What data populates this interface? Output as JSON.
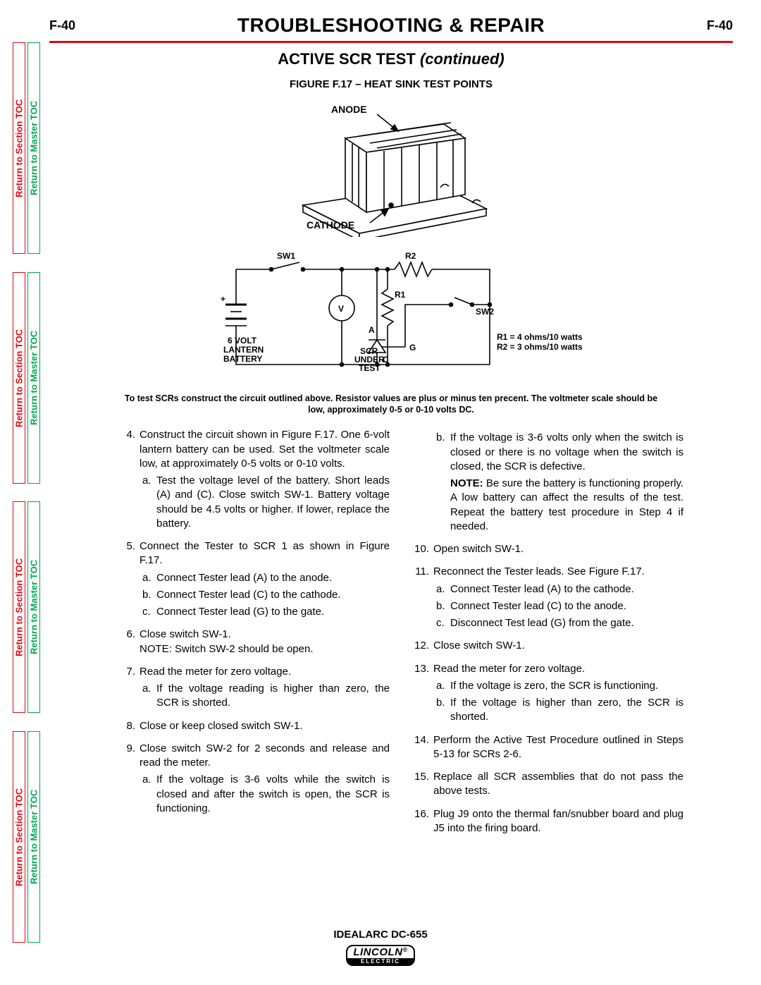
{
  "page_number": "F-40",
  "main_title": "TROUBLESHOOTING & REPAIR",
  "subtitle_main": "ACTIVE SCR TEST ",
  "subtitle_cont": "(continued)",
  "figure_title": "FIGURE F.17 – HEAT SINK TEST POINTS",
  "side_tabs": {
    "section": "Return to Section TOC",
    "master": "Return to Master TOC"
  },
  "heatsink_diagram": {
    "anode_label": "ANODE",
    "cathode_label": "CATHODE",
    "stroke": "#000000",
    "fill": "#ffffff"
  },
  "circuit_diagram": {
    "labels": {
      "sw1": "SW1",
      "sw2": "SW2",
      "r1": "R1",
      "r2": "R2",
      "v": "V",
      "a": "A",
      "g": "G",
      "c": "C",
      "plus": "+",
      "battery": "6 VOLT\nLANTERN\nBATTERY",
      "scr": "SCR\nUNDER\nTEST",
      "r_spec1": "R1 = 4 ohms/10 watts",
      "r_spec2": "R2 = 3 ohms/10 watts"
    },
    "stroke": "#000000"
  },
  "caption_note": "To test SCRs construct the circuit outlined above.  Resistor values are plus or minus ten precent.  The voltmeter scale should be low, approximately 0-5 or 0-10 volts DC.",
  "left_steps": [
    {
      "n": "4.",
      "body": "Construct the circuit shown in Figure F.17. One 6-volt lantern battery can be used.  Set the voltmeter scale low, at approximately 0-5 volts or 0-10 volts.",
      "subs": [
        {
          "l": "a.",
          "b": "Test the voltage level of the battery. Short leads (A) and (C).  Close switch SW-1.  Battery voltage should be 4.5 volts or higher.  If lower, replace the battery."
        }
      ]
    },
    {
      "n": "5.",
      "body": "Connect the Tester to SCR 1 as shown in Figure F.17.",
      "subs": [
        {
          "l": "a.",
          "b": "Connect Tester lead (A) to the anode."
        },
        {
          "l": "b.",
          "b": "Connect Tester lead (C) to the cathode."
        },
        {
          "l": "c.",
          "b": "Connect Tester lead (G) to the gate."
        }
      ]
    },
    {
      "n": "6.",
      "body": "Close switch SW-1.\nNOTE: Switch SW-2 should be open.",
      "subs": []
    },
    {
      "n": "7.",
      "body": "Read the meter for zero voltage.",
      "subs": [
        {
          "l": "a.",
          "b": "If the voltage reading is higher than zero, the SCR is shorted."
        }
      ]
    },
    {
      "n": "8.",
      "body": "Close or keep closed switch SW-1.",
      "subs": []
    },
    {
      "n": "9.",
      "body": "Close switch SW-2 for 2 seconds and release and read the meter.",
      "subs": [
        {
          "l": "a.",
          "b": "If the voltage is 3-6 volts while the switch is closed and after the switch is open, the SCR is functioning."
        }
      ]
    }
  ],
  "right_lead_subs": [
    {
      "l": "b.",
      "b": "If the voltage is 3-6 volts only when the switch is closed or there is no voltage when the switch is closed, the SCR is defective."
    }
  ],
  "right_note": "Be sure the battery is functioning properly.  A low battery can affect the results of the test.  Repeat the battery test procedure in Step 4 if needed.",
  "right_steps": [
    {
      "n": "10.",
      "body": "Open switch SW-1.",
      "subs": []
    },
    {
      "n": "11.",
      "body": "Reconnect the Tester leads.  See Figure F.17.",
      "subs": [
        {
          "l": "a.",
          "b": "Connect Tester lead (A) to the cathode."
        },
        {
          "l": "b.",
          "b": "Connect Tester lead (C) to the anode."
        },
        {
          "l": "c.",
          "b": "Disconnect Test lead (G) from the gate."
        }
      ]
    },
    {
      "n": "12.",
      "body": "Close switch SW-1.",
      "subs": []
    },
    {
      "n": "13.",
      "body": "Read the meter for zero voltage.",
      "subs": [
        {
          "l": "a.",
          "b": "If the voltage is zero, the SCR is functioning."
        },
        {
          "l": "b.",
          "b": "If the voltage is higher than zero, the SCR is shorted."
        }
      ]
    },
    {
      "n": "14.",
      "body": "Perform the Active Test Procedure outlined in Steps 5-13 for SCRs 2-6.",
      "subs": []
    },
    {
      "n": "15.",
      "body": "Replace all SCR assemblies that do not pass the above tests.",
      "subs": []
    },
    {
      "n": "16.",
      "body": "Plug J9 onto the thermal fan/snubber board and plug J5 into the firing board.",
      "subs": []
    }
  ],
  "footer_model": "IDEALARC DC-655",
  "footer_brand_top": "LINCOLN",
  "footer_brand_bot": "ELECTRIC"
}
